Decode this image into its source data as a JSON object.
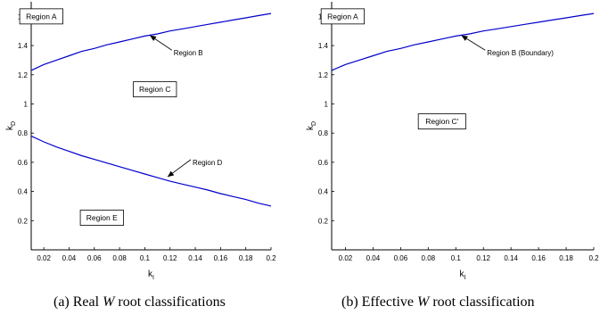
{
  "chart_data": [
    {
      "type": "line",
      "caption": {
        "prefix": "(a) Real ",
        "symbol": "W",
        "suffix": " root classifications"
      },
      "xlabel": "k_I",
      "ylabel": "k_D",
      "xlim": [
        0.01,
        0.2
      ],
      "ylim": [
        0,
        1.7
      ],
      "x_ticks": [
        "0.02",
        "0.04",
        "0.06",
        "0.08",
        "0.1",
        "0.12",
        "0.14",
        "0.16",
        "0.18",
        "0.2"
      ],
      "y_ticks": [
        "0.2",
        "0.4",
        "0.6",
        "0.8",
        "1",
        "1.2",
        "1.4",
        "1.6"
      ],
      "grid": false,
      "series": [
        {
          "color": "#0000cc",
          "x": [
            0.01,
            0.02,
            0.03,
            0.04,
            0.05,
            0.06,
            0.07,
            0.08,
            0.09,
            0.1,
            0.11,
            0.12,
            0.13,
            0.14,
            0.15,
            0.16,
            0.17,
            0.18,
            0.19,
            0.2
          ],
          "y": [
            1.23,
            1.27,
            1.3,
            1.33,
            1.36,
            1.38,
            1.405,
            1.425,
            1.445,
            1.465,
            1.48,
            1.5,
            1.515,
            1.53,
            1.545,
            1.56,
            1.575,
            1.59,
            1.605,
            1.62
          ]
        },
        {
          "color": "#0000cc",
          "x": [
            0.01,
            0.02,
            0.03,
            0.04,
            0.05,
            0.06,
            0.07,
            0.08,
            0.09,
            0.1,
            0.11,
            0.12,
            0.13,
            0.14,
            0.15,
            0.16,
            0.17,
            0.18,
            0.19,
            0.2
          ],
          "y": [
            0.78,
            0.74,
            0.705,
            0.675,
            0.645,
            0.62,
            0.595,
            0.57,
            0.545,
            0.52,
            0.495,
            0.47,
            0.45,
            0.43,
            0.41,
            0.385,
            0.365,
            0.345,
            0.32,
            0.3
          ]
        }
      ],
      "boxes": [
        {
          "text": "Region A",
          "x": 0.018,
          "y": 1.6
        },
        {
          "text": "Region C",
          "x": 0.108,
          "y": 1.1
        },
        {
          "text": "Region E",
          "x": 0.066,
          "y": 0.22
        }
      ],
      "callouts": [
        {
          "text": "Region B",
          "tx": 0.12,
          "ty": 1.35,
          "ax": 0.104,
          "ay": 1.47
        },
        {
          "text": "Region D",
          "tx": 0.135,
          "ty": 0.6,
          "ax": 0.118,
          "ay": 0.5
        }
      ]
    },
    {
      "type": "line",
      "caption": {
        "prefix": "(b) Effective ",
        "symbol": "W",
        "suffix": " root classification"
      },
      "xlabel": "k_I",
      "ylabel": "k_D",
      "xlim": [
        0.01,
        0.2
      ],
      "ylim": [
        0,
        1.7
      ],
      "x_ticks": [
        "0.02",
        "0.04",
        "0.06",
        "0.08",
        "0.1",
        "0.12",
        "0.14",
        "0.16",
        "0.18",
        "0.2"
      ],
      "y_ticks": [
        "0.2",
        "0.4",
        "0.6",
        "0.8",
        "1",
        "1.2",
        "1.4",
        "1.6"
      ],
      "grid": false,
      "series": [
        {
          "color": "#0000cc",
          "x": [
            0.01,
            0.02,
            0.03,
            0.04,
            0.05,
            0.06,
            0.07,
            0.08,
            0.09,
            0.1,
            0.11,
            0.12,
            0.13,
            0.14,
            0.15,
            0.16,
            0.17,
            0.18,
            0.19,
            0.2
          ],
          "y": [
            1.23,
            1.27,
            1.3,
            1.33,
            1.36,
            1.38,
            1.405,
            1.425,
            1.445,
            1.465,
            1.48,
            1.5,
            1.515,
            1.53,
            1.545,
            1.56,
            1.575,
            1.59,
            1.605,
            1.62
          ]
        }
      ],
      "boxes": [
        {
          "text": "Region A",
          "x": 0.018,
          "y": 1.6
        },
        {
          "text": "Region C'",
          "x": 0.09,
          "y": 0.88
        }
      ],
      "callouts": [
        {
          "text": "Region B (Boundary)",
          "tx": 0.12,
          "ty": 1.35,
          "ax": 0.104,
          "ay": 1.47
        }
      ]
    }
  ]
}
